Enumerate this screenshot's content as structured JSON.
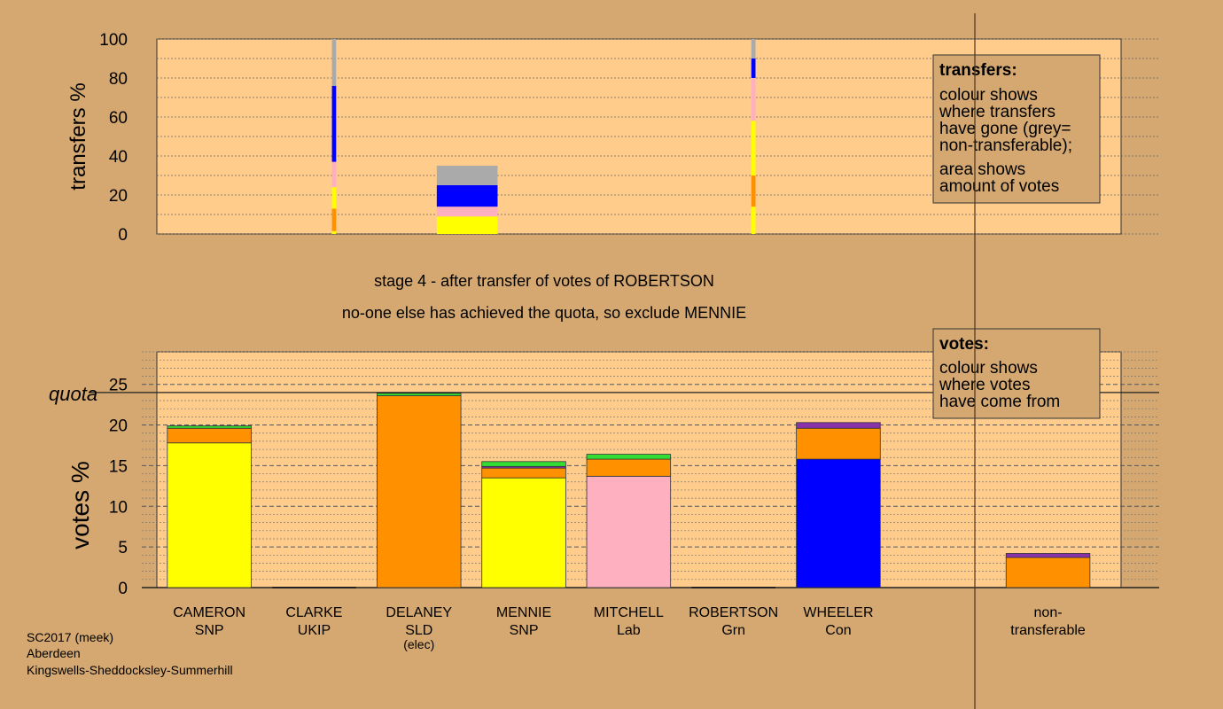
{
  "stage_title": "stage 4 - after transfer of votes of ROBERTSON",
  "stage_note": "no-one else has achieved the quota, so exclude MENNIE",
  "footer": [
    "SC2017 (meek)",
    "Aberdeen",
    "Kingswells-Sheddocksley-Summerhill"
  ],
  "colors": {
    "background": "#d4a870",
    "plot_bg": "#ffcc8c",
    "SNP": "#ffff00",
    "SLD": "#ff9000",
    "Lab": "#ffb0c0",
    "Con": "#0000ff",
    "Grn": "#33dd33",
    "UKIP": "#8833aa",
    "nontransferable": "#aaaaaa"
  },
  "chart_data": [
    {
      "type": "bar",
      "name": "transfers",
      "ylabel": "transfers %",
      "ylim": [
        0,
        100
      ],
      "yticks": [
        0,
        20,
        40,
        60,
        80,
        100
      ],
      "legend_title": "transfers:",
      "legend_lines": [
        "colour shows",
        "where transfers",
        "have gone (grey=",
        "non-transferable);",
        "area shows",
        "amount of votes"
      ],
      "bars": [
        {
          "slot": 1.69,
          "width": 0.04,
          "segments": [
            {
              "party": "SNP",
              "from": 0,
              "to": 1.5
            },
            {
              "party": "SLD",
              "from": 1.5,
              "to": 13
            },
            {
              "party": "SNP",
              "from": 13,
              "to": 24
            },
            {
              "party": "Lab",
              "from": 24,
              "to": 37
            },
            {
              "party": "Con",
              "from": 37,
              "to": 76
            },
            {
              "party": "nontransferable",
              "from": 76,
              "to": 100
            }
          ]
        },
        {
          "slot": 2.96,
          "width": 0.58,
          "segments": [
            {
              "party": "SNP",
              "from": 0,
              "to": 9
            },
            {
              "party": "Lab",
              "from": 9,
              "to": 14
            },
            {
              "party": "Con",
              "from": 14,
              "to": 25
            },
            {
              "party": "nontransferable",
              "from": 25,
              "to": 35
            }
          ]
        },
        {
          "slot": 5.69,
          "width": 0.04,
          "segments": [
            {
              "party": "SNP",
              "from": 0,
              "to": 14
            },
            {
              "party": "SLD",
              "from": 14,
              "to": 30
            },
            {
              "party": "SNP",
              "from": 30,
              "to": 58
            },
            {
              "party": "Lab",
              "from": 58,
              "to": 80
            },
            {
              "party": "Con",
              "from": 80,
              "to": 90
            },
            {
              "party": "nontransferable",
              "from": 90,
              "to": 100
            }
          ]
        }
      ]
    },
    {
      "type": "bar",
      "name": "votes",
      "ylabel": "votes %",
      "ylim": [
        0,
        29
      ],
      "yticks": [
        0,
        5,
        10,
        15,
        20,
        25
      ],
      "quota": 24,
      "quota_label": "quota",
      "legend_title": "votes:",
      "legend_lines": [
        "colour shows",
        "where votes",
        "have come from"
      ],
      "categories": [
        {
          "slot": 0.5,
          "lines": [
            "CAMERON",
            "SNP"
          ]
        },
        {
          "slot": 1.5,
          "lines": [
            "CLARKE",
            "UKIP"
          ]
        },
        {
          "slot": 2.5,
          "lines": [
            "DELANEY",
            "SLD",
            "(elec)"
          ]
        },
        {
          "slot": 3.5,
          "lines": [
            "MENNIE",
            "SNP"
          ]
        },
        {
          "slot": 4.5,
          "lines": [
            "MITCHELL",
            "Lab"
          ]
        },
        {
          "slot": 5.5,
          "lines": [
            "ROBERTSON",
            "Grn"
          ]
        },
        {
          "slot": 6.5,
          "lines": [
            "WHEELER",
            "Con"
          ]
        },
        {
          "slot": 8.5,
          "lines": [
            "non-",
            "transferable"
          ]
        }
      ],
      "bars": [
        {
          "slot": 0.5,
          "segments": [
            {
              "party": "SNP",
              "from": 0,
              "to": 17.8
            },
            {
              "party": "SLD",
              "from": 17.8,
              "to": 19.6
            },
            {
              "party": "Grn",
              "from": 19.6,
              "to": 19.9
            }
          ]
        },
        {
          "slot": 1.5,
          "segments": []
        },
        {
          "slot": 2.5,
          "segments": [
            {
              "party": "SLD",
              "from": 0,
              "to": 23.6
            },
            {
              "party": "Grn",
              "from": 23.6,
              "to": 23.9
            }
          ]
        },
        {
          "slot": 3.5,
          "segments": [
            {
              "party": "SNP",
              "from": 0,
              "to": 13.5
            },
            {
              "party": "SLD",
              "from": 13.5,
              "to": 14.7
            },
            {
              "party": "UKIP",
              "from": 14.7,
              "to": 14.9
            },
            {
              "party": "Grn",
              "from": 14.9,
              "to": 15.5
            }
          ]
        },
        {
          "slot": 4.5,
          "segments": [
            {
              "party": "Lab",
              "from": 0,
              "to": 13.7
            },
            {
              "party": "SLD",
              "from": 13.7,
              "to": 15.8
            },
            {
              "party": "Grn",
              "from": 15.8,
              "to": 16.4
            }
          ]
        },
        {
          "slot": 5.5,
          "segments": []
        },
        {
          "slot": 6.5,
          "segments": [
            {
              "party": "Con",
              "from": 0,
              "to": 15.8
            },
            {
              "party": "SLD",
              "from": 15.8,
              "to": 19.6
            },
            {
              "party": "UKIP",
              "from": 19.6,
              "to": 20.3
            }
          ]
        },
        {
          "slot": 8.5,
          "segments": [
            {
              "party": "SLD",
              "from": 0,
              "to": 3.7
            },
            {
              "party": "UKIP",
              "from": 3.7,
              "to": 4.2
            }
          ]
        }
      ]
    }
  ]
}
